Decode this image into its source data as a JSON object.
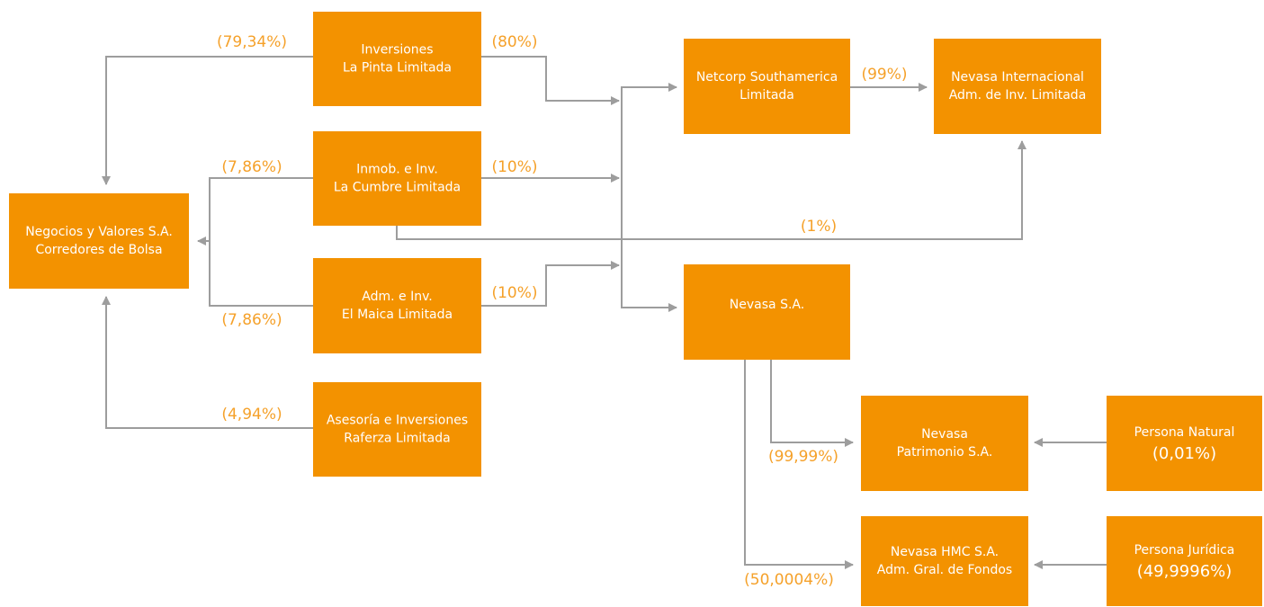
{
  "nodes": [
    {
      "lines": [
        "Inversiones",
        "La Pinta Limitada"
      ]
    },
    {
      "lines": [
        "Inmob. e Inv.",
        "La Cumbre Limitada"
      ]
    },
    {
      "lines": [
        "Adm. e Inv.",
        "El Maica Limitada"
      ]
    },
    {
      "lines": [
        "Asesoría e Inversiones",
        "Raferza Limitada"
      ]
    },
    {
      "lines": [
        "Negocios y Valores S.A.",
        "Corredores de Bolsa"
      ]
    },
    {
      "lines": [
        "Netcorp Southamerica",
        "Limitada"
      ]
    },
    {
      "lines": [
        "Nevasa Internacional",
        "Adm. de Inv. Limitada"
      ]
    },
    {
      "lines": [
        "Nevasa S.A."
      ]
    },
    {
      "lines": [
        "Nevasa",
        "Patrimonio S.A."
      ]
    },
    {
      "lines": [
        "Persona Natural",
        "(0,01%)"
      ]
    },
    {
      "lines": [
        "Nevasa HMC S.A.",
        "Adm. Gral. de Fondos"
      ]
    },
    {
      "lines": [
        "Persona Jurídica",
        "(49,9996%)"
      ]
    }
  ],
  "percentages": [
    "(79,34%)",
    "(80%)",
    "(7,86%)",
    "(10%)",
    "(7,86%)",
    "(10%)",
    "(4,94%)",
    "(1%)",
    "(99%)",
    "(99,99%)",
    "(50,0004%)"
  ]
}
